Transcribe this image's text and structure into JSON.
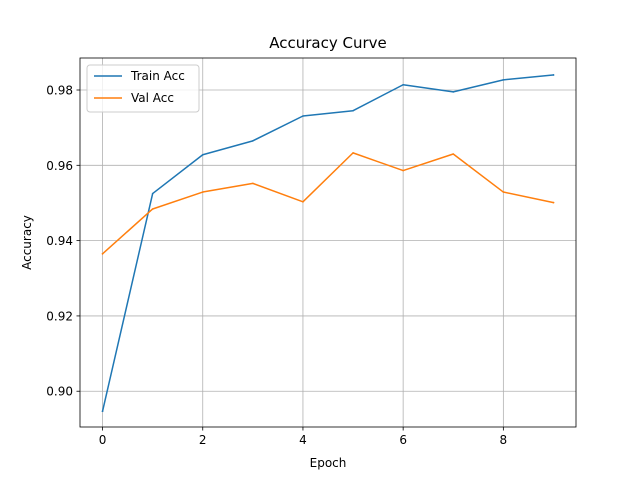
{
  "chart_data": {
    "type": "line",
    "title": "Accuracy Curve",
    "xlabel": "Epoch",
    "ylabel": "Accuracy",
    "x": [
      0,
      1,
      2,
      3,
      4,
      5,
      6,
      7,
      8,
      9
    ],
    "xticks": [
      0,
      2,
      4,
      6,
      8
    ],
    "xtick_labels": [
      "0",
      "2",
      "4",
      "6",
      "8"
    ],
    "yticks": [
      0.9,
      0.92,
      0.94,
      0.96,
      0.98
    ],
    "ytick_labels": [
      "0.90",
      "0.92",
      "0.94",
      "0.96",
      "0.98"
    ],
    "xlim": [
      -0.45,
      9.45
    ],
    "ylim": [
      0.8905,
      0.9885
    ],
    "grid": true,
    "legend_position": "upper-left",
    "series": [
      {
        "name": "Train Acc",
        "color": "#1f77b4",
        "values": [
          0.8947,
          0.9525,
          0.9628,
          0.9665,
          0.9731,
          0.9745,
          0.9814,
          0.9795,
          0.9827,
          0.984
        ]
      },
      {
        "name": "Val Acc",
        "color": "#ff7f0e",
        "values": [
          0.9365,
          0.9484,
          0.9529,
          0.9552,
          0.9503,
          0.9633,
          0.9586,
          0.963,
          0.9529,
          0.9501
        ]
      }
    ]
  }
}
